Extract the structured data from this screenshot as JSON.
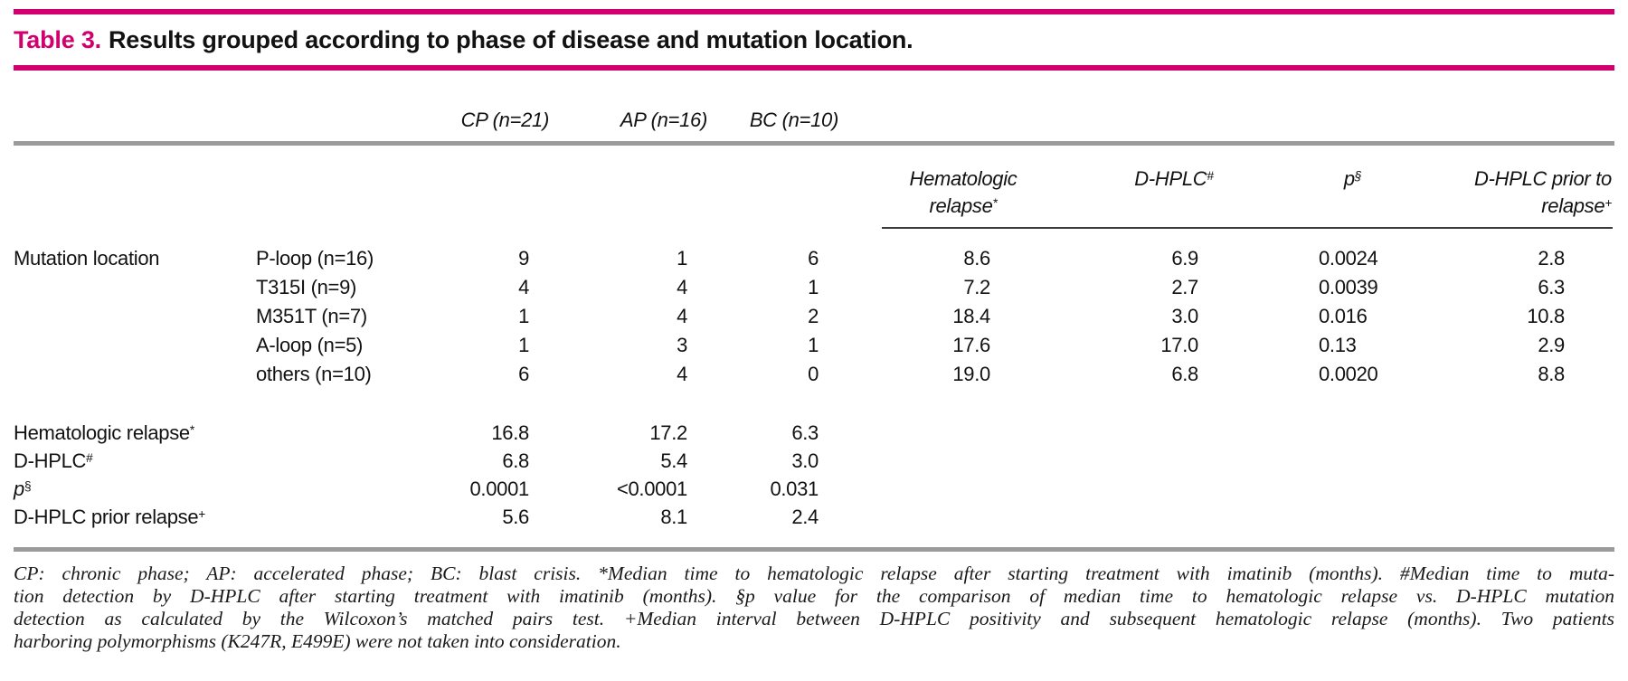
{
  "accent_color": "#d2006e",
  "title": {
    "prefix": "Table 3.",
    "text": "Results grouped according to phase of disease and mutation location."
  },
  "phase_headers": [
    "CP (n=21)",
    "AP (n=16)",
    "BC (n=10)"
  ],
  "outcome_headers": {
    "hema": {
      "line1": "Hematologic",
      "line2": "relapse",
      "sup": "*"
    },
    "dhplc": {
      "label": "D-HPLC",
      "sup": "#"
    },
    "p": {
      "label": "p",
      "sup": "§"
    },
    "prior": {
      "line1": "D-HPLC prior to",
      "line2": "relapse",
      "sup": "+"
    }
  },
  "table": {
    "group_label": "Mutation location",
    "mutation_rows": [
      {
        "label": "P-loop (n=16)",
        "cp": "9",
        "ap": "1",
        "bc": "6",
        "hema": "8.6",
        "dhplc": "6.9",
        "p": "0.0024",
        "prior": "2.8"
      },
      {
        "label": "T315I (n=9)",
        "cp": "4",
        "ap": "4",
        "bc": "1",
        "hema": "7.2",
        "dhplc": "2.7",
        "p": "0.0039",
        "prior": "6.3"
      },
      {
        "label": "M351T (n=7)",
        "cp": "1",
        "ap": "4",
        "bc": "2",
        "hema": "18.4",
        "dhplc": "3.0",
        "p": "0.016",
        "prior": "10.8"
      },
      {
        "label": "A-loop (n=5)",
        "cp": "1",
        "ap": "3",
        "bc": "1",
        "hema": "17.6",
        "dhplc": "17.0",
        "p": "0.13",
        "prior": "2.9"
      },
      {
        "label": "others (n=10)",
        "cp": "6",
        "ap": "4",
        "bc": "0",
        "hema": "19.0",
        "dhplc": "6.8",
        "p": "0.0020",
        "prior": "8.8"
      }
    ],
    "summary_rows": [
      {
        "label": "Hematologic relapse",
        "sup": "*",
        "cp": "16.8",
        "ap": "17.2",
        "bc": "6.3"
      },
      {
        "label": "D-HPLC",
        "sup": "#",
        "cp": "6.8",
        "ap": "5.4",
        "bc": "3.0"
      },
      {
        "label": "p",
        "sup": "§",
        "cp": "0.0001",
        "ap": "<0.0001",
        "bc": "0.031"
      },
      {
        "label": "D-HPLC prior relapse",
        "sup": "+",
        "cp": "5.6",
        "ap": "8.1",
        "bc": "2.4"
      }
    ]
  },
  "footnote_lines": [
    "CP: chronic phase; AP: accelerated phase; BC: blast crisis. *Median time to hematologic relapse after starting treatment with imatinib (months). #Median time to muta-",
    "tion detection by D-HPLC after starting treatment with imatinib (months). §p value for the comparison of median time to hematologic relapse vs. D-HPLC mutation",
    "detection as calculated by the Wilcoxon’s matched pairs test. +Median interval between D-HPLC positivity and subsequent hematologic relapse (months). Two patients",
    "harboring polymorphisms (K247R, E499E) were not taken into consideration."
  ]
}
